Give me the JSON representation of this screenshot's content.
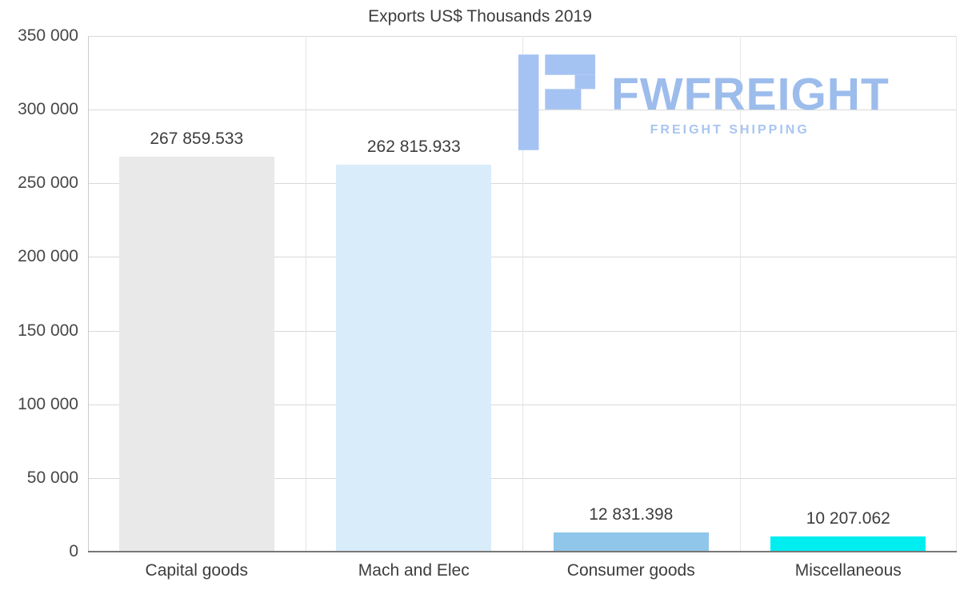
{
  "chart_data": {
    "type": "bar",
    "title": "Exports US$ Thousands 2019",
    "categories": [
      "Capital goods",
      "Mach and Elec",
      "Consumer goods",
      "Miscellaneous"
    ],
    "values": [
      267859.533,
      262815.933,
      12831.398,
      10207.062
    ],
    "value_labels": [
      "267 859.533",
      "262 815.933",
      "12 831.398",
      "10 207.062"
    ],
    "bar_colors": [
      "#e9e9e9",
      "#d9ecfa",
      "#8fc6e9",
      "#00eef0"
    ],
    "ylim": [
      0,
      350000
    ],
    "ytick_labels": [
      "350 000",
      "300 000",
      "250 000",
      "200 000",
      "150 000",
      "100 000",
      "50 000",
      "0"
    ],
    "grid": true,
    "legend": "none",
    "xlabel": "",
    "ylabel": ""
  },
  "watermark": {
    "brand": "FWFREIGHT",
    "tagline": "FREIGHT SHIPPING",
    "accent_color": "#9cbcec"
  }
}
